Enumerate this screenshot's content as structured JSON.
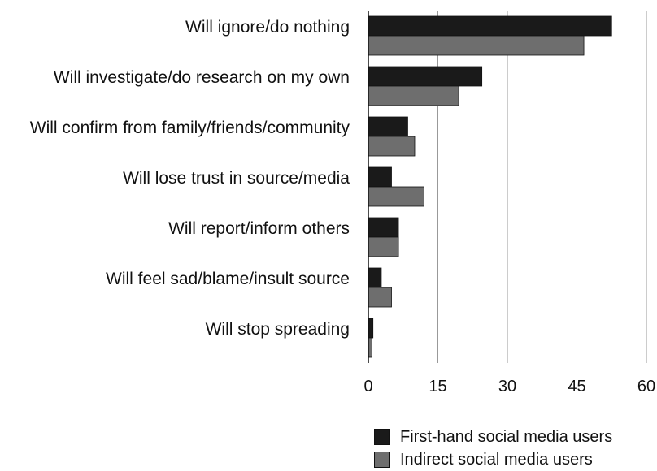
{
  "chart_data": {
    "type": "bar",
    "orientation": "horizontal",
    "categories": [
      "Will ignore/do nothing",
      "Will investigate/do research on my own",
      "Will confirm from family/friends/community",
      "Will lose trust in source/media",
      "Will report/inform others",
      "Will feel sad/blame/insult source",
      "Will stop spreading"
    ],
    "series": [
      {
        "name": "First-hand social media users",
        "color": "#1a1a1a",
        "values": [
          52.5,
          24.5,
          8.5,
          5.0,
          6.5,
          2.8,
          1.0
        ]
      },
      {
        "name": "Indirect social media users",
        "color": "#6e6e6e",
        "values": [
          46.5,
          19.5,
          10.0,
          12.0,
          6.5,
          5.0,
          0.8
        ]
      }
    ],
    "xticks": [
      "0",
      "15",
      "30",
      "45",
      "60"
    ],
    "xlim": [
      0,
      60
    ],
    "grid": "vertical",
    "legend_position": "bottom-right",
    "title": "",
    "xlabel": "",
    "ylabel": ""
  }
}
